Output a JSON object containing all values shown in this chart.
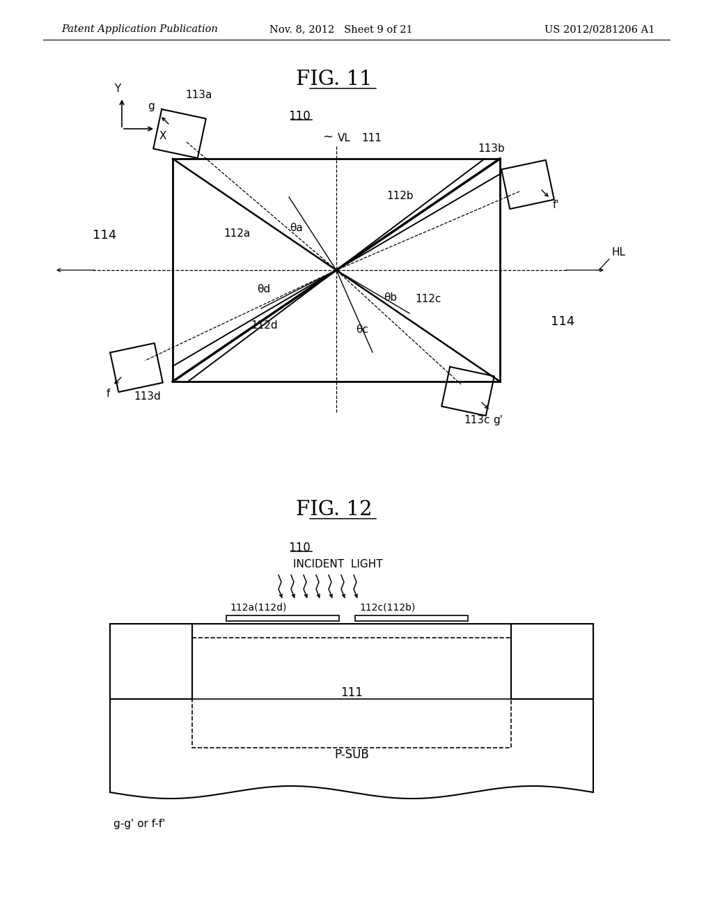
{
  "bg_color": "#ffffff",
  "line_color": "#000000",
  "header_left": "Patent Application Publication",
  "header_mid": "Nov. 8, 2012   Sheet 9 of 21",
  "header_right": "US 2012/0281206 A1"
}
